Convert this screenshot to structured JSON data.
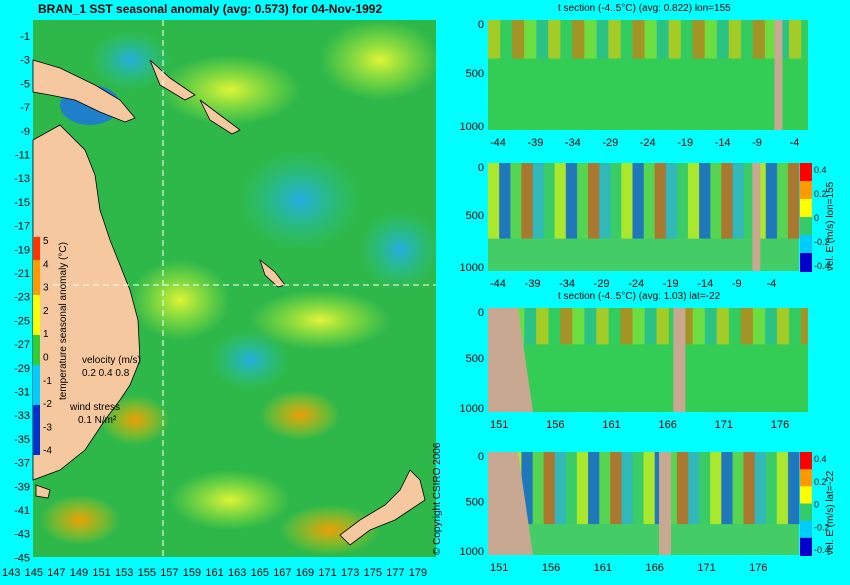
{
  "map": {
    "title": "BRAN_1 SST seasonal anomaly (avg: 0.573) for 04-Nov-1992",
    "ytick_labels": [
      "-1",
      "-3",
      "-5",
      "-7",
      "-9",
      "-11",
      "-13",
      "-15",
      "-17",
      "-19",
      "-21",
      "-23",
      "-25",
      "-27",
      "-29",
      "-31",
      "-33",
      "-35",
      "-37",
      "-39",
      "-41",
      "-43",
      "-45"
    ],
    "xtick_labels": [
      "143",
      "145",
      "147",
      "149",
      "151",
      "153",
      "155",
      "157",
      "159",
      "161",
      "163",
      "165",
      "167",
      "169",
      "171",
      "173",
      "175",
      "177",
      "179"
    ],
    "colorbar_label": "temperature seasonal anomaly (°C)",
    "colorbar_ticks": [
      "5",
      "4",
      "3",
      "2",
      "1",
      "0",
      "-1",
      "-2",
      "-3",
      "-4"
    ],
    "velocity_label": "velocity (m/s)",
    "velocity_scale": "0.2 0.4 0.8",
    "wind_label": "wind stress",
    "wind_scale": "0.1 N/m²",
    "crosshair_lon": 155,
    "crosshair_lat": -22
  },
  "panels": [
    {
      "title": "t section (-4..5°C) (avg: 0.822) lon=155",
      "xticks": [
        "-44",
        "-39",
        "-34",
        "-29",
        "-24",
        "-19",
        "-14",
        "-9",
        "-4"
      ],
      "yticks": [
        "0",
        "500",
        "1000"
      ],
      "side_label": ""
    },
    {
      "title": "",
      "xticks": [
        "-44",
        "-39",
        "-34",
        "-29",
        "-24",
        "-19",
        "-14",
        "-9",
        "-4"
      ],
      "yticks": [
        "0",
        "500",
        "1000"
      ],
      "side_label": "vel. E (m/s) lon=155",
      "cb_ticks": [
        "0.4",
        "0.2",
        "0",
        "-0.2",
        "-0.4"
      ]
    },
    {
      "title": "t section (-4..5°C) (avg: 1.03) lat=-22",
      "xticks": [
        "151",
        "156",
        "161",
        "166",
        "171",
        "176"
      ],
      "yticks": [
        "0",
        "500",
        "1000"
      ],
      "side_label": ""
    },
    {
      "title": "",
      "xticks": [
        "151",
        "156",
        "161",
        "166",
        "171",
        "176"
      ],
      "yticks": [
        "0",
        "500",
        "1000"
      ],
      "side_label": "vel. E (m/s) lat=-22",
      "cb_ticks": [
        "0.4",
        "0.2",
        "0",
        "-0.2",
        "-0.4"
      ]
    }
  ],
  "copyright": "© Copyright CSIRO 2006",
  "colors": {
    "background": "#00ffff",
    "land": "#f5c8a0",
    "ocean_base": "#2fb84a",
    "section_land": "#c8a890"
  }
}
